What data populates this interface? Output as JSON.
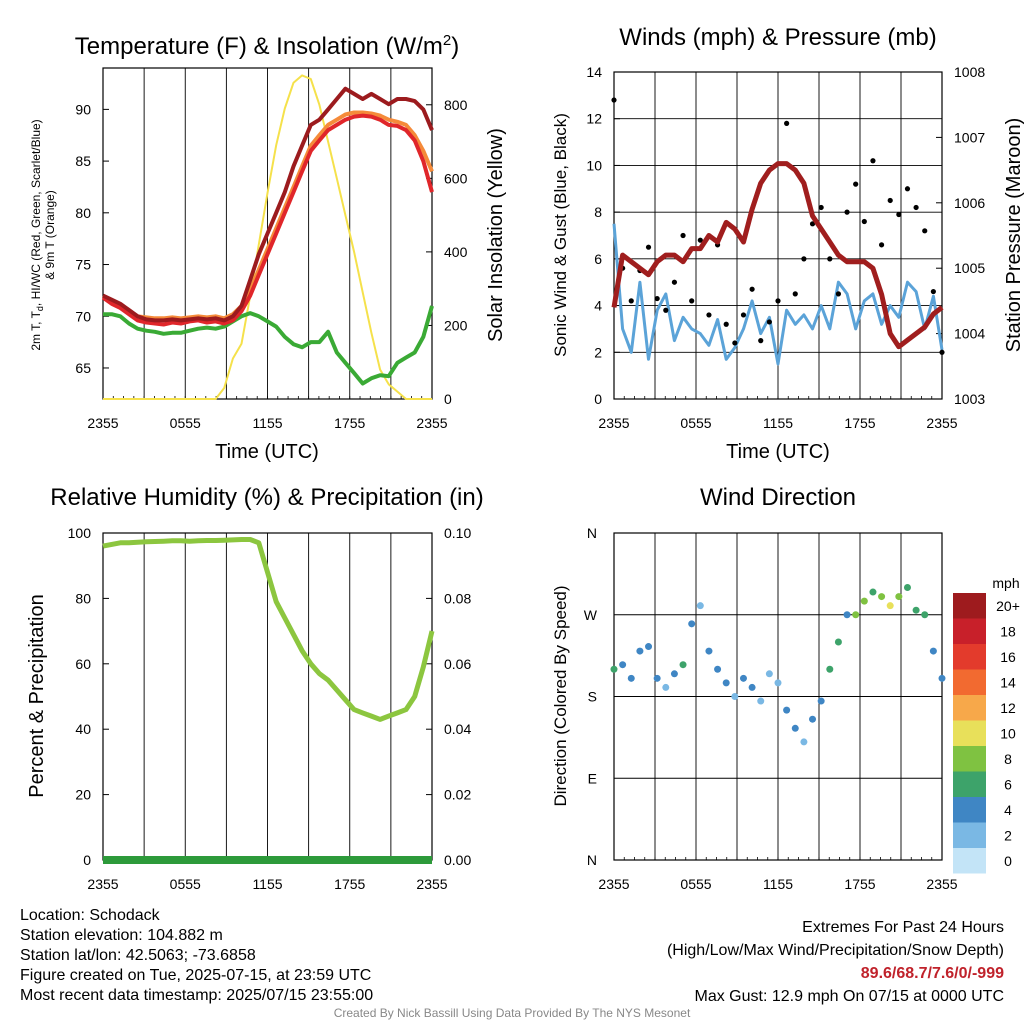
{
  "chart_data": [
    {
      "type": "line",
      "title": "Temperature (F) & Insolation (W/m",
      "title_sup": "2",
      "title_end": ")",
      "xlabel": "Time (UTC)",
      "ylabel_lines": [
        "2m T, T",
        "d",
        ", HI/WC (Red, Green, Scarlet/Blue)",
        "& 9m T (Orange)"
      ],
      "y2label": "Solar Insolation (Yellow)",
      "x_ticks": [
        "2355",
        "0555",
        "1155",
        "1755",
        "2355"
      ],
      "ylim": [
        62,
        94
      ],
      "y_ticks": [
        65,
        70,
        75,
        80,
        85,
        90
      ],
      "y2lim": [
        0,
        900
      ],
      "y2_ticks": [
        0,
        200,
        400,
        600,
        800
      ],
      "series": [
        {
          "color": "#9c1b1e",
          "axis": "left",
          "values": [
            72,
            71.6,
            71.2,
            70.6,
            70,
            69.7,
            69.6,
            69.6,
            69.7,
            69.6,
            69.7,
            69.8,
            69.7,
            69.8,
            69.6,
            70,
            71,
            73.5,
            76,
            78,
            80,
            82,
            84.5,
            86.5,
            88.5,
            89,
            90,
            91,
            92,
            91.5,
            91,
            91.5,
            91,
            90.5,
            91,
            91,
            90.8,
            90,
            88
          ]
        },
        {
          "color": "#e0262a",
          "axis": "left",
          "values": [
            71.8,
            71.2,
            70.8,
            70.2,
            69.6,
            69.4,
            69.3,
            69.2,
            69.4,
            69.3,
            69.5,
            69.6,
            69.4,
            69.5,
            69.3,
            69.6,
            70.5,
            72,
            74,
            76,
            78,
            80,
            82,
            84,
            86,
            87,
            88,
            88.5,
            89,
            89.3,
            89.4,
            89.3,
            89,
            88.5,
            88.4,
            88,
            87,
            85,
            82
          ]
        },
        {
          "color": "#f58b3a",
          "axis": "left",
          "values": [
            72,
            71.5,
            71,
            70.5,
            70,
            69.9,
            69.8,
            69.8,
            69.9,
            69.8,
            69.9,
            70,
            69.9,
            70,
            69.8,
            70.2,
            71,
            72.5,
            74.5,
            76.5,
            78.5,
            80.5,
            82.5,
            84.5,
            86.5,
            87.5,
            88.5,
            89,
            89.5,
            89.7,
            89.7,
            89.6,
            89.4,
            89,
            88.8,
            88.5,
            87.5,
            86,
            84
          ]
        },
        {
          "color": "#3aaa35",
          "axis": "left",
          "values": [
            70.2,
            70.2,
            70,
            69.3,
            68.8,
            68.6,
            68.5,
            68.3,
            68.4,
            68.4,
            68.6,
            68.8,
            68.9,
            68.8,
            69,
            69.5,
            70,
            70.3,
            70,
            69.5,
            69,
            68,
            67.3,
            67,
            67.5,
            67.5,
            68.5,
            66.5,
            65.5,
            64.5,
            63.5,
            64,
            64.3,
            64.2,
            65.5,
            66,
            66.5,
            68,
            71
          ]
        },
        {
          "color": "#f5e14b",
          "axis": "right",
          "values": [
            0,
            0,
            0,
            0,
            0,
            0,
            0,
            0,
            0,
            0,
            0,
            0,
            0,
            0,
            30,
            110,
            150,
            280,
            420,
            560,
            690,
            790,
            860,
            880,
            870,
            800,
            700,
            600,
            500,
            400,
            290,
            180,
            80,
            40,
            20,
            0,
            0,
            0,
            0
          ]
        }
      ]
    },
    {
      "type": "scatter",
      "title": "Winds (mph) & Pressure (mb)",
      "xlabel": "Time (UTC)",
      "ylabel": "Sonic Wind & Gust (Blue, Black)",
      "y2label": "Station Pressure (Maroon)",
      "x_ticks": [
        "2355",
        "0555",
        "1155",
        "1755",
        "2355"
      ],
      "ylim": [
        0,
        14
      ],
      "y_ticks": [
        0,
        2,
        4,
        6,
        8,
        10,
        12,
        14
      ],
      "y2lim": [
        1003,
        1008
      ],
      "y2_ticks": [
        1003,
        1004,
        1005,
        1006,
        1007,
        1008
      ],
      "series": [
        {
          "name": "",
          "color": "#5ba3d8",
          "style": "line",
          "values": [
            7.5,
            3,
            2,
            5,
            1.7,
            3.8,
            4.5,
            2.5,
            3.5,
            3,
            2.8,
            2.3,
            3.4,
            1.7,
            2.2,
            3,
            4.2,
            2.8,
            3.5,
            1.5,
            3.8,
            3.2,
            3.6,
            3,
            4,
            3,
            5,
            4.5,
            3,
            4.2,
            4.5,
            3.2,
            4,
            3.5,
            5,
            4.6,
            3,
            4.4,
            2.1
          ]
        },
        {
          "name": "",
          "color": "#000000",
          "style": "points",
          "values": [
            12.8,
            5.6,
            4.2,
            5.5,
            6.5,
            4.3,
            3.8,
            5,
            7,
            4.2,
            6.8,
            3.6,
            6.6,
            3.2,
            2.4,
            3.6,
            4.7,
            2.5,
            3.3,
            4.2,
            11.8,
            4.5,
            6,
            7.5,
            8.2,
            6,
            4.5,
            8,
            9.2,
            7.6,
            10.2,
            6.6,
            8.5,
            7.9,
            9,
            8.2,
            7.2,
            4.6,
            2
          ]
        },
        {
          "name": "",
          "color": "#a01e1e",
          "style": "line",
          "axis": "right",
          "values": [
            1004.4,
            1005.2,
            1005.1,
            1005,
            1004.9,
            1005.1,
            1005.2,
            1005.2,
            1005.1,
            1005.3,
            1005.3,
            1005.5,
            1005.4,
            1005.7,
            1005.6,
            1005.4,
            1005.9,
            1006.3,
            1006.5,
            1006.6,
            1006.6,
            1006.5,
            1006.3,
            1005.8,
            1005.6,
            1005.4,
            1005.2,
            1005.1,
            1005.1,
            1005.1,
            1005,
            1004.6,
            1004,
            1003.8,
            1003.9,
            1004,
            1004.1,
            1004.3,
            1004.4
          ]
        }
      ]
    },
    {
      "type": "line",
      "title": "Relative Humidity (%) & Precipitation (in)",
      "xlabel": "",
      "ylabel": "Percent & Precipitation",
      "x_ticks": [
        "2355",
        "0555",
        "1155",
        "1755",
        "2355"
      ],
      "ylim": [
        0,
        100
      ],
      "y_ticks": [
        0,
        20,
        40,
        60,
        80,
        100
      ],
      "y2lim": [
        0,
        0.1
      ],
      "y2_ticks": [
        "0.00",
        "0.02",
        "0.04",
        "0.06",
        "0.08",
        "0.10"
      ],
      "series": [
        {
          "color": "#8cc63f",
          "axis": "left",
          "values": [
            96,
            96.5,
            97,
            97,
            97.2,
            97.3,
            97.4,
            97.5,
            97.6,
            97.6,
            97.5,
            97.6,
            97.7,
            97.7,
            97.8,
            97.9,
            98,
            98,
            97,
            88,
            79,
            74,
            69,
            64,
            60,
            57,
            55,
            52,
            49,
            46,
            45,
            44,
            43,
            44,
            45,
            46,
            50,
            59,
            70
          ]
        },
        {
          "color": "#2d9a3a",
          "axis": "right",
          "values": [
            0,
            0,
            0,
            0,
            0,
            0,
            0,
            0,
            0,
            0,
            0,
            0,
            0,
            0,
            0,
            0,
            0,
            0,
            0,
            0,
            0,
            0,
            0,
            0,
            0,
            0,
            0,
            0,
            0,
            0,
            0,
            0,
            0,
            0,
            0,
            0,
            0,
            0,
            0
          ]
        }
      ]
    },
    {
      "type": "scatter",
      "title": "Wind Direction",
      "xlabel": "",
      "ylabel": "Direction (Colored By Speed)",
      "x_ticks": [
        "2355",
        "0555",
        "1155",
        "1755",
        "2355"
      ],
      "y_ticks": [
        "N",
        "E",
        "S",
        "W",
        "N"
      ],
      "ylim": [
        0,
        360
      ],
      "legend_title": "mph",
      "legend_entries": [
        "20+",
        "18",
        "16",
        "14",
        "12",
        "10",
        "8",
        "6",
        "4",
        "2",
        "0"
      ],
      "legend_colors": [
        "#9e1b1e",
        "#c8202a",
        "#e33b2c",
        "#f26a30",
        "#f7a84a",
        "#e8e05a",
        "#7fc241",
        "#3da36a",
        "#3f86c4",
        "#7ab8e4",
        "#c3e4f7"
      ],
      "directions": [
        210,
        215,
        200,
        230,
        235,
        200,
        190,
        205,
        215,
        260,
        280,
        230,
        210,
        195,
        180,
        200,
        190,
        175,
        205,
        195,
        165,
        145,
        130,
        155,
        175,
        210,
        240,
        270,
        270,
        285,
        295,
        290,
        280,
        290,
        300,
        275,
        270,
        230,
        200
      ],
      "speeds": [
        5,
        4,
        3,
        4,
        3,
        3,
        2,
        4,
        5,
        4,
        2,
        3,
        4,
        3,
        2,
        3,
        4,
        2,
        1,
        2,
        3,
        3,
        2,
        4,
        4,
        6,
        5,
        4,
        7,
        8,
        6,
        8,
        9,
        7,
        6,
        6,
        5,
        4,
        3
      ]
    }
  ],
  "footer": {
    "location": "Location: Schodack",
    "elevation": "Station elevation: 104.882 m",
    "latlon": "Station lat/lon: 42.5063; -73.6858",
    "created": "Figure created on Tue, 2025-07-15, at 23:59 UTC",
    "recent": "Most recent data timestamp: 2025/07/15 23:55:00",
    "extremes_title": "Extremes For Past 24 Hours",
    "extremes_legend": "(High/Low/Max Wind/Precipitation/Snow Depth)",
    "extremes_values": "89.6/68.7/7.6/0/-999",
    "max_gust": "Max Gust: 12.9 mph On 07/15 at 0000 UTC",
    "credit": "Created By Nick Bassill Using Data Provided By The NYS Mesonet"
  }
}
